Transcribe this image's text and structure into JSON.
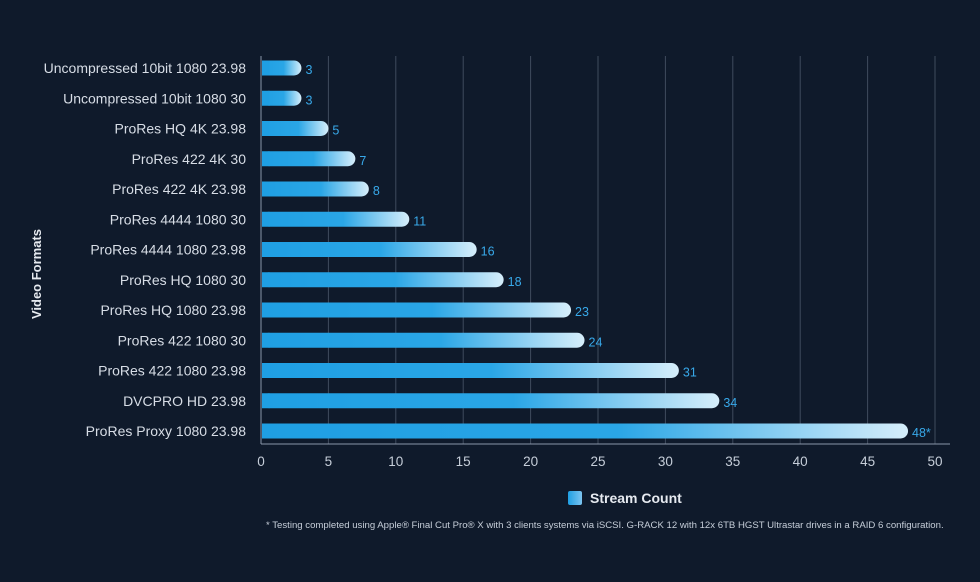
{
  "chart_data": {
    "type": "bar",
    "orientation": "horizontal",
    "ylabel": "Video Formats",
    "xlabel": "",
    "xlim": [
      0,
      50
    ],
    "x_ticks": [
      0,
      5,
      10,
      15,
      20,
      25,
      30,
      35,
      40,
      45,
      50
    ],
    "categories": [
      "Uncompressed 10bit 1080 23.98",
      "Uncompressed 10bit 1080 30",
      "ProRes HQ 4K 23.98",
      "ProRes 422 4K 30",
      "ProRes 422 4K 23.98",
      "ProRes 4444 1080 30",
      "ProRes 4444 1080 23.98",
      "ProRes HQ 1080 30",
      "ProRes HQ 1080 23.98",
      "ProRes 422 1080 30",
      "ProRes 422 1080 23.98",
      "DVCPRO HD 23.98",
      "ProRes Proxy 1080 23.98"
    ],
    "series": [
      {
        "name": "Stream Count",
        "values": [
          3,
          3,
          5,
          7,
          8,
          11,
          16,
          18,
          23,
          24,
          31,
          34,
          48
        ],
        "labels": [
          "3",
          "3",
          "5",
          "7",
          "8",
          "11",
          "16",
          "18",
          "23",
          "24",
          "31",
          "34",
          "48*"
        ]
      }
    ],
    "grid": true,
    "legend": "bottom-center"
  },
  "legend_label": "Stream Count",
  "footnote": "* Testing completed using Apple® Final Cut Pro® X with 3 clients systems via iSCSI. G-RACK 12 with 12x 6TB HGST Ultrastar drives in a RAID 6 configuration.",
  "colors": {
    "background": "#0f1a2b",
    "bar_start": "#1f9fe3",
    "bar_end": "#d6eefb",
    "value_label": "#38a9ea",
    "grid": "#3f4c5e"
  }
}
